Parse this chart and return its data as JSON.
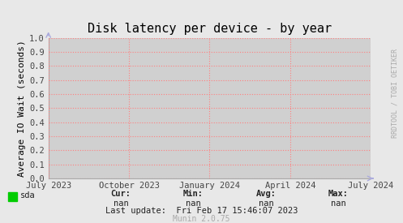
{
  "title": "Disk latency per device - by year",
  "ylabel": "Average IO Wait (seconds)",
  "background_color": "#e8e8e8",
  "plot_bg_color": "#d0d0d0",
  "grid_color": "#ff8080",
  "ylim": [
    0.0,
    1.0
  ],
  "yticks": [
    0.0,
    0.1,
    0.2,
    0.3,
    0.4,
    0.5,
    0.6,
    0.7,
    0.8,
    0.9,
    1.0
  ],
  "xtick_labels": [
    "July 2023",
    "October 2023",
    "January 2024",
    "April 2024",
    "July 2024"
  ],
  "legend_item": "sda",
  "legend_color": "#00cc00",
  "cur_val": "nan",
  "min_val": "nan",
  "avg_val": "nan",
  "max_val": "nan",
  "last_update": "Last update:  Fri Feb 17 15:46:07 2023",
  "munin_label": "Munin 2.0.75",
  "watermark": "RRDTOOL / TOBI OETIKER",
  "title_fontsize": 11,
  "axis_label_fontsize": 8,
  "tick_fontsize": 7.5,
  "footer_fontsize": 7.5,
  "watermark_fontsize": 6
}
